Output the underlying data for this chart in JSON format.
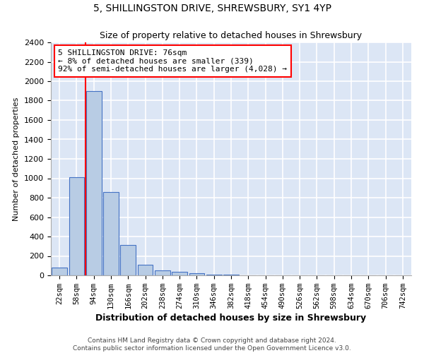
{
  "title": "5, SHILLINGSTON DRIVE, SHREWSBURY, SY1 4YP",
  "subtitle": "Size of property relative to detached houses in Shrewsbury",
  "xlabel": "Distribution of detached houses by size in Shrewsbury",
  "ylabel": "Number of detached properties",
  "categories": [
    "22sqm",
    "58sqm",
    "94sqm",
    "130sqm",
    "166sqm",
    "202sqm",
    "238sqm",
    "274sqm",
    "310sqm",
    "346sqm",
    "382sqm",
    "418sqm",
    "454sqm",
    "490sqm",
    "526sqm",
    "562sqm",
    "598sqm",
    "634sqm",
    "670sqm",
    "706sqm",
    "742sqm"
  ],
  "values": [
    80,
    1010,
    1900,
    860,
    310,
    110,
    50,
    40,
    25,
    10,
    10,
    0,
    0,
    0,
    0,
    0,
    0,
    0,
    0,
    0,
    0
  ],
  "bar_color": "#b8cce4",
  "bar_edge_color": "#4472c4",
  "background_color": "#dce6f5",
  "grid_color": "#ffffff",
  "ylim": [
    0,
    2400
  ],
  "yticks": [
    0,
    200,
    400,
    600,
    800,
    1000,
    1200,
    1400,
    1600,
    1800,
    2000,
    2200,
    2400
  ],
  "property_line_x": 1.5,
  "annotation_text": "5 SHILLINGSTON DRIVE: 76sqm\n← 8% of detached houses are smaller (339)\n92% of semi-detached houses are larger (4,028) →",
  "footer_line1": "Contains HM Land Registry data © Crown copyright and database right 2024.",
  "footer_line2": "Contains public sector information licensed under the Open Government Licence v3.0."
}
